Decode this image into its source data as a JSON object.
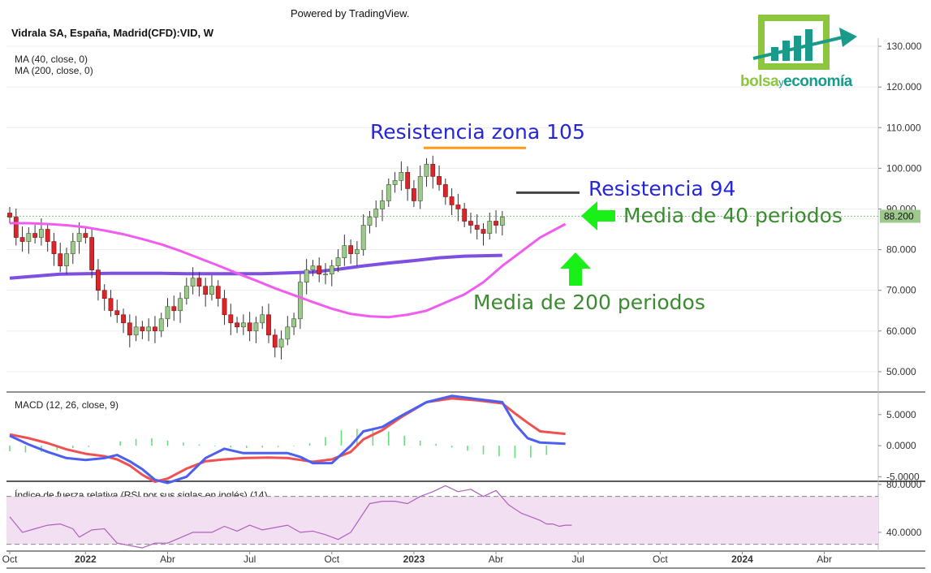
{
  "header": {
    "powered_by": "Powered by TradingView.",
    "symbol_title": "Vidrala SA, España, Madrid(CFD):VID, W",
    "ma40_label": "MA (40, close, 0)",
    "ma200_label": "MA (200, close, 0)",
    "macd_label": "MACD (12, 26, close, 9)",
    "rsi_label": "Índice de fuerza relativa (RSI por sus siglas en inglés) (14)"
  },
  "logo": {
    "part1": "bolsa",
    "part2": "y",
    "part3": "economía"
  },
  "annotations": {
    "resistance_105": "Resistencia zona 105",
    "resistance_94": "Resistencia 94",
    "ma40_note": "Media de 40 periodos",
    "ma200_note": "Media de 200 periodos"
  },
  "colors": {
    "up_candle": "#9ec98c",
    "down_candle": "#d8262b",
    "ma40": "#f05cf0",
    "ma200": "#7e4fe0",
    "macd_line": "#4b5ff0",
    "signal_line": "#f05050",
    "histogram": "#66e07a",
    "rsi_line": "#b05fc0",
    "rsi_band": "#f2e0f2",
    "annotation_blue": "#2626d9",
    "annotation_green": "#3a8a2f",
    "arrow_green": "#18f018",
    "resistance_orange": "#ff9a1a",
    "resistance_dark": "#444444",
    "logo_green": "#8cc63f",
    "logo_teal": "#1a9a8a"
  },
  "chart_data": [
    {
      "type": "candlestick",
      "title": "Vidrala SA, España, Madrid(CFD):VID, W",
      "y_ticks": [
        "130.000",
        "120.000",
        "110.000",
        "100.000",
        "90.000",
        "80.000",
        "70.000",
        "60.000",
        "50.000"
      ],
      "ylim": [
        45,
        132
      ],
      "last_price": "88.200",
      "x_ticks": [
        "Oct",
        "2022",
        "Abr",
        "Jul",
        "Oct",
        "2023",
        "Abr",
        "Jul",
        "Oct",
        "2024",
        "Abr"
      ],
      "x_tick_weeks": [
        0,
        12,
        25,
        38,
        51,
        64,
        77,
        90,
        103,
        116,
        129
      ],
      "closes": [
        88,
        83,
        82,
        84,
        83,
        85,
        82,
        79,
        76,
        79,
        82,
        84,
        83,
        75,
        70,
        68,
        65,
        64,
        62,
        59,
        61,
        60,
        61,
        60,
        63,
        66,
        65,
        68,
        71,
        73,
        71,
        69,
        71,
        68,
        64,
        62,
        61,
        62,
        60,
        62,
        64,
        59,
        56,
        58,
        61,
        63,
        72,
        75,
        76,
        74,
        74,
        76,
        78,
        81,
        79,
        80,
        86,
        88,
        90,
        92,
        96,
        97,
        99,
        95,
        92,
        98,
        101,
        98,
        96,
        93,
        91,
        90,
        87,
        86,
        85,
        84,
        87,
        86,
        88
      ],
      "candle_start_week": 0,
      "series": [
        {
          "name": "MA (40, close, 0)",
          "values": [
            86.5,
            86.5,
            86.3,
            86.0,
            85.5,
            84.7,
            83.8,
            82.6,
            81.3,
            79.7,
            77.9,
            76.1,
            74.2,
            72.4,
            70.5,
            68.8,
            67.1,
            65.5,
            64.2,
            63.6,
            63.4,
            64.0,
            65.0,
            67.0,
            69.0,
            72.0,
            76.0,
            79.5,
            83.0,
            86.3
          ]
        },
        {
          "name": "MA (200, close, 0)",
          "values": [
            73.0,
            73.5,
            74.0,
            74.1,
            74.2,
            74.2,
            74.2,
            74.1,
            74.1,
            74.1,
            74.1,
            74.3,
            74.5,
            75.2,
            76.0,
            76.7,
            77.3,
            78.0,
            78.4,
            78.6
          ]
        }
      ],
      "ma40_weeks": [
        0,
        3,
        6,
        9,
        12,
        15,
        18,
        21,
        24,
        27,
        30,
        33,
        36,
        39,
        42,
        45,
        48,
        51,
        54,
        57,
        60,
        63,
        66,
        69,
        72,
        75,
        78,
        81,
        84,
        88
      ],
      "ma200_weeks": [
        0,
        4,
        8,
        12,
        16,
        20,
        24,
        28,
        32,
        36,
        40,
        44,
        48,
        52,
        56,
        60,
        64,
        68,
        72,
        78
      ],
      "resistance_levels": [
        105,
        94
      ]
    },
    {
      "type": "line",
      "title": "MACD (12, 26, close, 9)",
      "y_ticks": [
        "5.0000",
        "0.0000",
        "-5.0000"
      ],
      "ylim": [
        -5.6,
        8.5
      ],
      "series": [
        {
          "name": "MACD",
          "values": [
            1.6,
            0.2,
            -1.0,
            -2.0,
            -2.3,
            -2.0,
            -1.5,
            -2.5,
            -3.8,
            -5.5,
            -6.0,
            -5.0,
            -2.0,
            -0.5,
            -1.2,
            -1.2,
            -1.2,
            -1.8,
            -2.8,
            -2.8,
            0.0,
            2.3,
            3.0,
            4.8,
            7.0,
            8.0,
            7.5,
            7.0,
            3.5,
            1.2,
            0.5,
            0.3
          ]
        },
        {
          "name": "Signal",
          "values": [
            1.8,
            1.2,
            0.4,
            -0.6,
            -1.3,
            -1.7,
            -2.2,
            -3.2,
            -4.7,
            -5.8,
            -5.3,
            -3.7,
            -2.5,
            -2.2,
            -2.0,
            -1.9,
            -2.0,
            -2.3,
            -2.6,
            -2.2,
            -1.0,
            1.0,
            2.5,
            4.6,
            7.0,
            7.6,
            7.3,
            6.8,
            5.2,
            3.7,
            2.3,
            1.9
          ]
        }
      ],
      "x_weeks": [
        0,
        3,
        6,
        9,
        12,
        15,
        17,
        19,
        21,
        23,
        25,
        28,
        31,
        34,
        37,
        41,
        44,
        46,
        48,
        51,
        54,
        56,
        59,
        62,
        66,
        70,
        74,
        78,
        80,
        82,
        84,
        88
      ],
      "histogram": [
        -0.9,
        -1.1,
        -1.0,
        -0.7,
        -0.4,
        -0.2,
        0.0,
        0.7,
        1.1,
        1.2,
        0.8,
        0.5,
        0.2,
        -0.1,
        -0.3,
        -0.4,
        -0.3,
        -0.2,
        -0.1,
        0.4,
        1.4,
        2.5,
        2.7,
        2.6,
        2.3,
        1.6,
        0.8,
        0.3,
        -0.3,
        -0.8,
        -1.4,
        -1.7,
        -2.0,
        -1.9,
        -1.5
      ]
    },
    {
      "type": "line",
      "title": "Índice de fuerza relativa (RSI por sus siglas en inglés) (14)",
      "y_ticks": [
        "80.0000",
        "40.0000"
      ],
      "ylim": [
        25,
        82
      ],
      "band": [
        30,
        70
      ],
      "series": [
        {
          "name": "RSI",
          "values": [
            53,
            40,
            43,
            46,
            47,
            43,
            36,
            42,
            43,
            31,
            27,
            31,
            31,
            40,
            40,
            45,
            41,
            46,
            42,
            46,
            40,
            41,
            38,
            34,
            40,
            64,
            66,
            66,
            64,
            70,
            74,
            79,
            74,
            76,
            70,
            75,
            63,
            56,
            52,
            50,
            47,
            47,
            45,
            46,
            46
          ]
        }
      ],
      "x_weeks": [
        0,
        2,
        4,
        6,
        8,
        10,
        11,
        13,
        15,
        17,
        21,
        23,
        25,
        29,
        32,
        34,
        36,
        38,
        40,
        44,
        46,
        48,
        50,
        52,
        54,
        57,
        59,
        61,
        63,
        65,
        67,
        69,
        71,
        73,
        75,
        77,
        79,
        81,
        83,
        84,
        85,
        86,
        87,
        88,
        89
      ]
    }
  ]
}
